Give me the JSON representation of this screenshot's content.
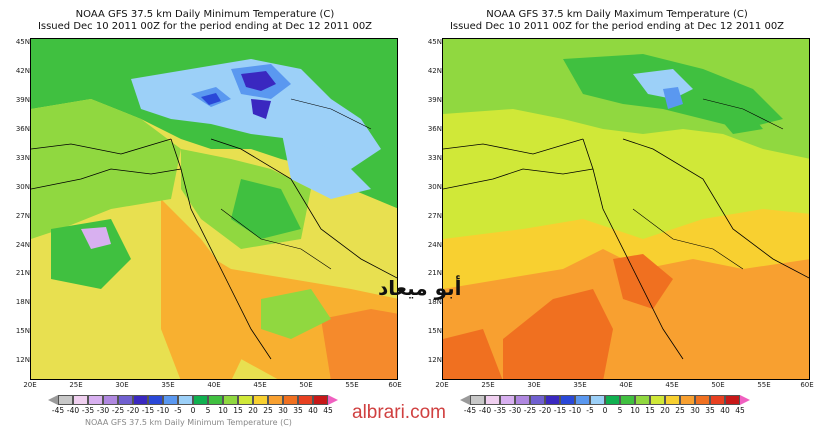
{
  "left": {
    "title": "NOAA GFS 37.5 km Daily Minimum Temperature (C)",
    "subtitle": "Issued Dec 10 2011 00Z for the period ending at Dec 12 2011 00Z"
  },
  "right": {
    "title": "NOAA GFS 37.5 km Daily Maximum Temperature (C)",
    "subtitle": "Issued Dec 10 2011 00Z for the period ending at Dec 12 2011 00Z"
  },
  "lat_labels": [
    "45N",
    "42N",
    "39N",
    "36N",
    "33N",
    "30N",
    "27N",
    "24N",
    "21N",
    "18N",
    "15N",
    "12N"
  ],
  "lon_labels": [
    "20E",
    "25E",
    "30E",
    "35E",
    "40E",
    "45E",
    "50E",
    "55E",
    "60E"
  ],
  "colorbar": {
    "ticks": [
      "-45",
      "-40",
      "-35",
      "-30",
      "-25",
      "-20",
      "-15",
      "-10",
      "-5",
      "0",
      "5",
      "10",
      "15",
      "20",
      "25",
      "30",
      "35",
      "40",
      "45"
    ],
    "colors": [
      "#9a9a9a",
      "#c8c8c8",
      "#f0d0f0",
      "#d8b0f0",
      "#b088e0",
      "#7060d0",
      "#3a28c0",
      "#2a48d8",
      "#5a98f0",
      "#9cd0f8",
      "#10b050",
      "#40c040",
      "#90d840",
      "#d0e838",
      "#f8d030",
      "#f8a030",
      "#f07020",
      "#e84020",
      "#c81818",
      "#f060c0"
    ]
  },
  "watermark_arabic": "أبو ميعاد",
  "watermark_url": "albrari.com",
  "footer_cut": "NOAA GFS 37.5 km Daily Minimum Temperature (C)"
}
